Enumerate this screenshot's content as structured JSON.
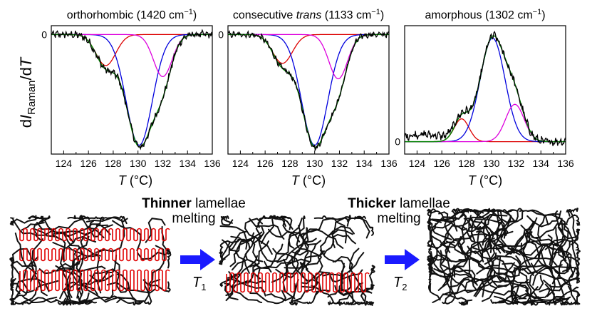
{
  "figure": {
    "ylabel": {
      "prefix": "d",
      "italic_I": "I",
      "sub": "Raman",
      "slash": "/d",
      "italic_T": "T"
    },
    "xlabel": {
      "italic": "T",
      "rest": " (°C)"
    },
    "zero_label": "0",
    "bottom_texts": {
      "thinner_bold": "Thinner",
      "thinner_rest": " lamellae",
      "thinner_melting": "melting",
      "thicker_bold": "Thicker",
      "thicker_rest": " lamellae",
      "thicker_melting": "melting",
      "t1_italic": "T",
      "t1_sub": "1",
      "t2_italic": "T",
      "t2_sub": "2"
    }
  },
  "colors": {
    "data": "#000000",
    "fit": "#008000",
    "peak_127": "#dd0000",
    "peak_130": "#0000dd",
    "peak_132": "#dd00dd",
    "lamella": "#e00000",
    "chain": "#111111",
    "arrow": "#1a1aff"
  },
  "chart_data": [
    {
      "type": "line",
      "title": {
        "before": "orthorhombic (1420 cm",
        "sup": "−1",
        "after": ")"
      },
      "xlim": [
        123,
        136
      ],
      "x_ticks": [
        124,
        126,
        128,
        130,
        132,
        134,
        136
      ],
      "ylim": [
        -1.08,
        0.08
      ],
      "zero_tick": 0,
      "sign": -1,
      "peaks": [
        {
          "name": "red",
          "center": 127.4,
          "width": 0.8,
          "amplitude": 0.28
        },
        {
          "name": "blue",
          "center": 130.1,
          "width": 1.05,
          "amplitude": 1.0
        },
        {
          "name": "magenta",
          "center": 132.0,
          "width": 0.75,
          "amplitude": 0.38
        }
      ],
      "noise": 0.025
    },
    {
      "type": "line",
      "title": {
        "before": "consecutive ",
        "italic": "trans",
        "after": " (1133 cm",
        "sup": "−1",
        "after2": ")"
      },
      "xlim": [
        123,
        136
      ],
      "x_ticks": [
        124,
        126,
        128,
        130,
        132,
        134,
        136
      ],
      "ylim": [
        -1.08,
        0.08
      ],
      "zero_tick": 0,
      "sign": -1,
      "peaks": [
        {
          "name": "red",
          "center": 127.4,
          "width": 0.8,
          "amplitude": 0.26
        },
        {
          "name": "blue",
          "center": 130.0,
          "width": 1.05,
          "amplitude": 1.0
        },
        {
          "name": "magenta",
          "center": 131.9,
          "width": 0.75,
          "amplitude": 0.4
        }
      ],
      "noise": 0.02
    },
    {
      "type": "line",
      "title": {
        "before": "amorphous (1302 cm",
        "sup": "−1",
        "after": ")"
      },
      "xlim": [
        123,
        136
      ],
      "x_ticks": [
        124,
        126,
        128,
        130,
        132,
        134,
        136
      ],
      "ylim": [
        -0.12,
        1.12
      ],
      "zero_tick": 0,
      "sign": 1,
      "peaks": [
        {
          "name": "red",
          "center": 127.6,
          "width": 0.6,
          "amplitude": 0.22
        },
        {
          "name": "blue",
          "center": 130.1,
          "width": 1.0,
          "amplitude": 1.0
        },
        {
          "name": "magenta",
          "center": 131.9,
          "width": 0.75,
          "amplitude": 0.36
        }
      ],
      "noise": 0.03
    }
  ]
}
